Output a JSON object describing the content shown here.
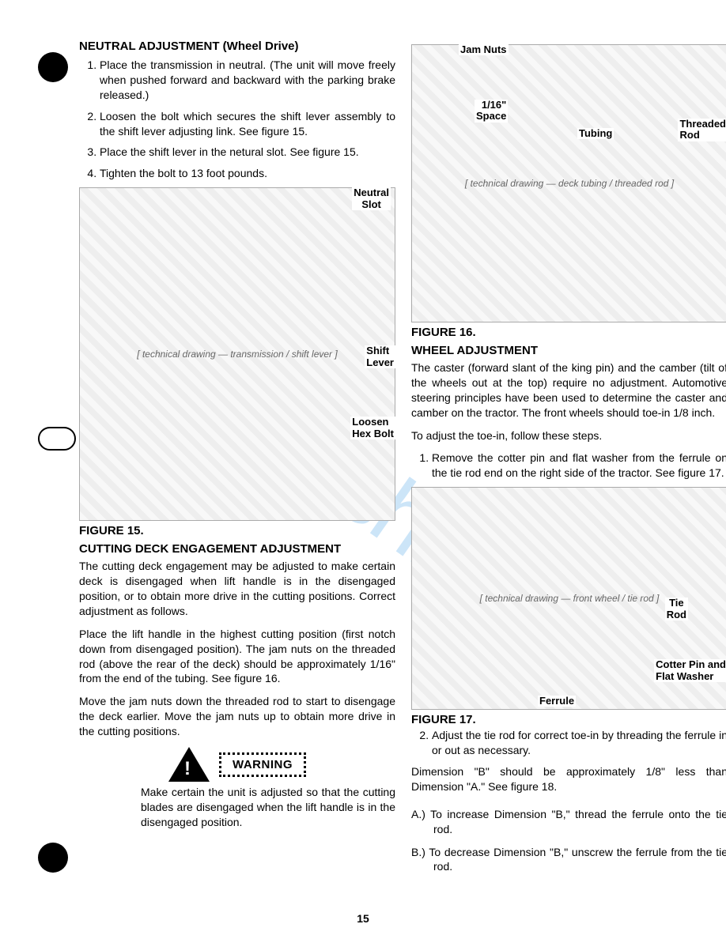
{
  "page_number": "15",
  "watermark": "ualshiv",
  "left": {
    "title1": "NEUTRAL ADJUSTMENT (Wheel Drive)",
    "steps1": [
      "Place the transmission in neutral. (The unit will move freely when pushed forward and backward with the parking brake released.)",
      "Loosen the bolt which secures the shift lever assembly to the shift lever adjusting link. See figure 15.",
      "Place the shift lever in the netural slot. See figure 15.",
      "Tighten the bolt to 13 foot pounds."
    ],
    "fig15": {
      "label": "FIGURE 15.",
      "callouts": {
        "neutral_slot": "Neutral\nSlot",
        "shift_lever": "Shift\nLever",
        "loosen": "Loosen\nHex Bolt"
      }
    },
    "title2": "CUTTING DECK ENGAGEMENT ADJUSTMENT",
    "para1": "The cutting deck engagement may be adjusted to make certain deck is disengaged when lift handle is in the disengaged position, or to obtain more drive in the cutting positions. Correct adjustment as follows.",
    "para2": "Place the lift handle in the highest cutting position (first notch down from disengaged position). The jam nuts on the threaded rod (above the rear of the deck) should be approximately 1/16\" from the end of the tubing. See figure 16.",
    "para3": "Move the jam nuts down the threaded rod to start to disengage the deck earlier. Move the jam nuts up to obtain more drive in the cutting positions.",
    "warning_label": "WARNING",
    "warning_text": "Make certain the unit is adjusted so that the cutting blades are disengaged when the lift handle is in the disengaged position."
  },
  "right": {
    "fig16": {
      "label": "FIGURE 16.",
      "callouts": {
        "jam_nuts": "Jam Nuts",
        "space": "1/16\"\nSpace",
        "tubing": "Tubing",
        "threaded_rod": "Threaded\nRod"
      }
    },
    "title1": "WHEEL ADJUSTMENT",
    "para1": "The caster (forward slant of the king pin) and the camber (tilt of the wheels out at the top) require no adjustment. Automotive steering principles have been used to determine the caster and camber on the tractor. The front wheels should toe-in 1/8 inch.",
    "para2": "To adjust the toe-in, follow these steps.",
    "steps1": [
      "Remove the cotter pin and flat washer from the ferrule on the tie rod end on the right side of the tractor. See figure 17."
    ],
    "fig17": {
      "label": "FIGURE 17.",
      "callouts": {
        "tie_rod": "Tie\nRod",
        "cotter": "Cotter Pin and\nFlat Washer",
        "ferrule": "Ferrule"
      }
    },
    "steps2": [
      "Adjust the tie rod for correct toe-in by threading the ferrule in or out as necessary."
    ],
    "para3": "Dimension \"B\" should be approximately 1/8\" less than Dimension \"A.\" See figure 18.",
    "sublist": [
      {
        "k": "A.)",
        "t": "To increase Dimension \"B,\" thread the ferrule onto the tie rod."
      },
      {
        "k": "B.)",
        "t": "To decrease Dimension \"B,\" unscrew the ferrule from the tie rod."
      }
    ]
  }
}
